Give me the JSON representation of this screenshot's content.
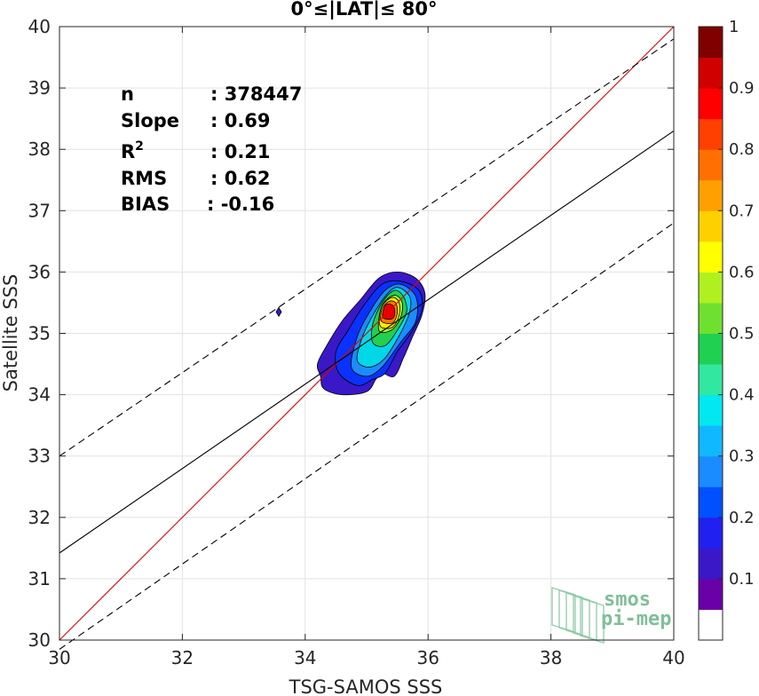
{
  "chart_data": {
    "type": "heatmap",
    "title": "0°≤|LAT|≤ 80°",
    "xlabel": "TSG-SAMOS SSS",
    "ylabel": "Satellite SSS",
    "xlim": [
      30,
      40
    ],
    "ylim": [
      30,
      40
    ],
    "xticks": [
      "30",
      "32",
      "34",
      "36",
      "38",
      "40"
    ],
    "yticks": [
      "30",
      "31",
      "32",
      "33",
      "34",
      "35",
      "36",
      "37",
      "38",
      "39",
      "40"
    ],
    "grid": true,
    "stats": [
      {
        "label": "n",
        "value": ": 378447"
      },
      {
        "label": "Slope",
        "value": ": 0.69"
      },
      {
        "label": "R",
        "sup": "2",
        "value": ": 0.21"
      },
      {
        "label": "RMS",
        "value": ": 0.62"
      },
      {
        "label": "BIAS",
        "value": ": -0.16"
      }
    ],
    "lines": {
      "one_to_one": {
        "color": "#e00000",
        "points": [
          [
            30,
            30
          ],
          [
            40,
            40
          ]
        ]
      },
      "regression": {
        "color": "#000000",
        "points": [
          [
            30,
            31.42
          ],
          [
            40,
            38.3
          ]
        ]
      },
      "upper_bound": {
        "color": "#000000",
        "dashed": true,
        "points": [
          [
            30,
            33.0
          ],
          [
            40,
            39.8
          ]
        ]
      },
      "lower_bound": {
        "color": "#000000",
        "dashed": true,
        "points": [
          [
            30,
            29.85
          ],
          [
            40,
            36.8
          ]
        ]
      }
    },
    "contours": [
      {
        "level": 0.05,
        "color": "#3a18c8",
        "points": [
          [
            34.25,
            34.3
          ],
          [
            34.3,
            34.1
          ],
          [
            34.6,
            34.0
          ],
          [
            35.0,
            34.05
          ],
          [
            35.15,
            34.25
          ],
          [
            35.25,
            34.35
          ],
          [
            35.45,
            34.3
          ],
          [
            35.6,
            34.6
          ],
          [
            35.75,
            34.95
          ],
          [
            35.9,
            35.3
          ],
          [
            35.95,
            35.65
          ],
          [
            35.8,
            35.9
          ],
          [
            35.5,
            36.0
          ],
          [
            35.2,
            35.9
          ],
          [
            34.9,
            35.55
          ],
          [
            34.6,
            35.2
          ],
          [
            34.35,
            34.8
          ],
          [
            34.2,
            34.5
          ]
        ]
      },
      {
        "level": 0.2,
        "color": "#0a32ff",
        "points": [
          [
            34.55,
            34.35
          ],
          [
            34.85,
            34.15
          ],
          [
            35.1,
            34.25
          ],
          [
            35.3,
            34.35
          ],
          [
            35.5,
            34.7
          ],
          [
            35.75,
            35.05
          ],
          [
            35.9,
            35.4
          ],
          [
            35.85,
            35.7
          ],
          [
            35.55,
            35.85
          ],
          [
            35.25,
            35.8
          ],
          [
            34.95,
            35.45
          ],
          [
            34.7,
            35.05
          ],
          [
            34.5,
            34.7
          ]
        ]
      },
      {
        "level": 0.3,
        "color": "#1a8cff",
        "points": [
          [
            34.75,
            34.45
          ],
          [
            35.0,
            34.3
          ],
          [
            35.25,
            34.45
          ],
          [
            35.55,
            34.85
          ],
          [
            35.8,
            35.2
          ],
          [
            35.8,
            35.6
          ],
          [
            35.55,
            35.8
          ],
          [
            35.3,
            35.7
          ],
          [
            35.05,
            35.35
          ],
          [
            34.85,
            34.95
          ]
        ]
      },
      {
        "level": 0.4,
        "color": "#00d8e8",
        "points": [
          [
            34.85,
            34.55
          ],
          [
            35.05,
            34.45
          ],
          [
            35.3,
            34.6
          ],
          [
            35.55,
            35.0
          ],
          [
            35.7,
            35.35
          ],
          [
            35.7,
            35.6
          ],
          [
            35.5,
            35.75
          ],
          [
            35.3,
            35.6
          ],
          [
            35.05,
            35.2
          ],
          [
            34.9,
            34.85
          ]
        ]
      },
      {
        "level": 0.5,
        "color": "#20d050",
        "points": [
          [
            35.1,
            34.85
          ],
          [
            35.3,
            34.8
          ],
          [
            35.5,
            35.05
          ],
          [
            35.65,
            35.35
          ],
          [
            35.6,
            35.6
          ],
          [
            35.45,
            35.7
          ],
          [
            35.25,
            35.5
          ],
          [
            35.1,
            35.15
          ]
        ]
      },
      {
        "level": 0.6,
        "color": "#aef032",
        "points": [
          [
            35.2,
            35.05
          ],
          [
            35.4,
            35.05
          ],
          [
            35.55,
            35.25
          ],
          [
            35.58,
            35.5
          ],
          [
            35.45,
            35.62
          ],
          [
            35.25,
            35.45
          ]
        ]
      },
      {
        "level": 0.7,
        "color": "#ffe800",
        "points": [
          [
            35.22,
            35.12
          ],
          [
            35.42,
            35.1
          ],
          [
            35.53,
            35.3
          ],
          [
            35.52,
            35.52
          ],
          [
            35.4,
            35.58
          ],
          [
            35.24,
            35.42
          ]
        ]
      },
      {
        "level": 0.8,
        "color": "#ff7a00",
        "points": [
          [
            35.24,
            35.2
          ],
          [
            35.42,
            35.17
          ],
          [
            35.5,
            35.33
          ],
          [
            35.47,
            35.5
          ],
          [
            35.36,
            35.52
          ],
          [
            35.25,
            35.4
          ]
        ]
      },
      {
        "level": 0.9,
        "color": "#e80000",
        "points": [
          [
            35.27,
            35.25
          ],
          [
            35.42,
            35.24
          ],
          [
            35.46,
            35.36
          ],
          [
            35.42,
            35.46
          ],
          [
            35.32,
            35.47
          ],
          [
            35.27,
            35.37
          ]
        ]
      }
    ],
    "outlier": {
      "x": 33.57,
      "y": 35.35,
      "color": "#3a18c8"
    },
    "colorbar": {
      "range": [
        0,
        1
      ],
      "ticks": [
        "0.1",
        "0.2",
        "0.3",
        "0.4",
        "0.5",
        "0.6",
        "0.7",
        "0.8",
        "0.9",
        "1"
      ],
      "colors": [
        "#ffffff",
        "#6a00a8",
        "#3a18c8",
        "#2020f0",
        "#0050ff",
        "#1a8cff",
        "#10b8ff",
        "#00e8f0",
        "#30e8a0",
        "#20d050",
        "#70e030",
        "#b0f020",
        "#ffff00",
        "#ffd000",
        "#ffa000",
        "#ff7000",
        "#ff4000",
        "#ff0000",
        "#d00000",
        "#800000"
      ]
    },
    "logo": [
      "smos",
      "pi-mep"
    ]
  }
}
